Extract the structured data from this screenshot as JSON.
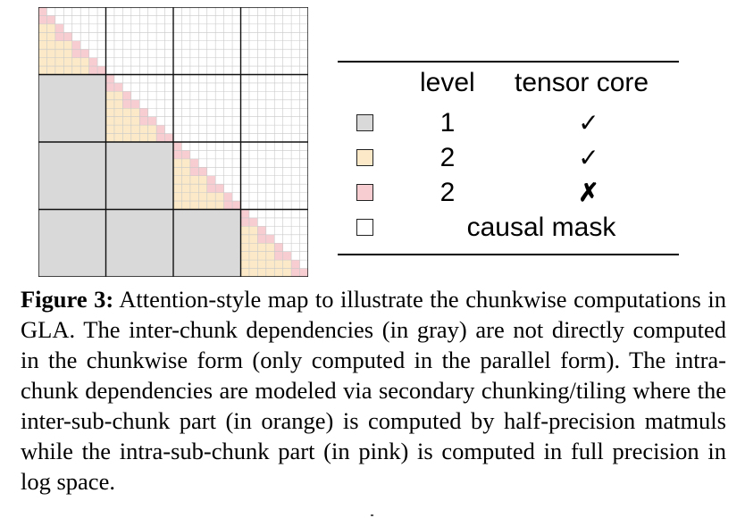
{
  "figure": {
    "map": {
      "chunks": 4,
      "sub_chunks_per_chunk": 4,
      "cells_per_sub_chunk": 2,
      "colors": {
        "inter_chunk_gray": "#d9d9d9",
        "inter_sub_chunk_orange": "#fbe9c7",
        "intra_sub_chunk_pink": "#f7cdd2",
        "causal_mask_white": "#ffffff",
        "fine_grid": "#c8c8c8",
        "chunk_border": "#111111"
      }
    },
    "legend": {
      "header": {
        "level": "level",
        "tensor_core": "tensor core"
      },
      "rows": [
        {
          "color": "#d9d9d9",
          "level": "1",
          "tensor_core": "✓"
        },
        {
          "color": "#fbe9c7",
          "level": "2",
          "tensor_core": "✓"
        },
        {
          "color": "#f7cdd2",
          "level": "2",
          "tensor_core": "✗"
        },
        {
          "color": "#ffffff",
          "label": "causal mask"
        }
      ]
    },
    "caption": {
      "label": "Figure 3:",
      "text": "Attention-style map to illustrate the chunkwise computations in GLA. The inter-chunk dependencies (in gray) are not directly computed in the chunkwise form (only computed in the parallel form). The intra-chunk dependencies are modeled via secondary chunking/tiling where the inter-sub-chunk part (in orange) is computed by half-precision matmuls while the intra-sub-chunk part (in pink) is computed in full precision in log space."
    }
  }
}
